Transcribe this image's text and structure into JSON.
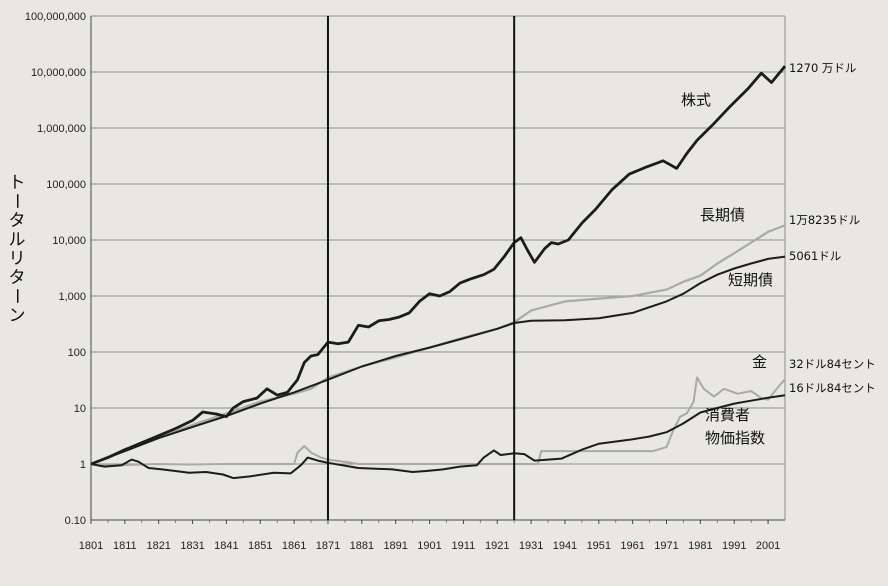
{
  "chart_data": {
    "type": "line",
    "title": "",
    "xlabel": "",
    "ylabel": "トータルリターン",
    "scale": "log",
    "ylim": [
      0.1,
      100000000
    ],
    "xlim": [
      1801,
      2006
    ],
    "yticks": [
      "100,000,000",
      "10,000,000",
      "1,000,000",
      "100,000",
      "10,000",
      "1,000",
      "100",
      "10",
      "1",
      "0.10"
    ],
    "xticks": [
      "1801",
      "1811",
      "1821",
      "1831",
      "1841",
      "1851",
      "1861",
      "1871",
      "1881",
      "1891",
      "1901",
      "1911",
      "1921",
      "1931",
      "1941",
      "1951",
      "1961",
      "1971",
      "1981",
      "1991",
      "2001"
    ],
    "vlines": [
      1871,
      1926
    ],
    "grid": true,
    "series": [
      {
        "name": "株式",
        "color": "#1c1c1c",
        "width": 2.8,
        "end_label": "1270 万ドル",
        "points": [
          [
            1801,
            1
          ],
          [
            1806,
            1.3
          ],
          [
            1811,
            1.8
          ],
          [
            1816,
            2.4
          ],
          [
            1821,
            3.2
          ],
          [
            1826,
            4.3
          ],
          [
            1831,
            6
          ],
          [
            1834,
            8.5
          ],
          [
            1838,
            7.8
          ],
          [
            1841,
            7
          ],
          [
            1843,
            10
          ],
          [
            1846,
            13
          ],
          [
            1850,
            15
          ],
          [
            1853,
            22
          ],
          [
            1856,
            17
          ],
          [
            1859,
            19
          ],
          [
            1862,
            32
          ],
          [
            1864,
            65
          ],
          [
            1866,
            85
          ],
          [
            1868,
            90
          ],
          [
            1871,
            150
          ],
          [
            1874,
            140
          ],
          [
            1877,
            150
          ],
          [
            1880,
            300
          ],
          [
            1883,
            280
          ],
          [
            1886,
            360
          ],
          [
            1889,
            380
          ],
          [
            1892,
            420
          ],
          [
            1895,
            500
          ],
          [
            1898,
            800
          ],
          [
            1901,
            1100
          ],
          [
            1904,
            1000
          ],
          [
            1907,
            1200
          ],
          [
            1910,
            1700
          ],
          [
            1913,
            2000
          ],
          [
            1917,
            2400
          ],
          [
            1920,
            3000
          ],
          [
            1923,
            5000
          ],
          [
            1926,
            9000
          ],
          [
            1928,
            11000
          ],
          [
            1930,
            6500
          ],
          [
            1932,
            4000
          ],
          [
            1935,
            7000
          ],
          [
            1937,
            9000
          ],
          [
            1939,
            8500
          ],
          [
            1942,
            10000
          ],
          [
            1946,
            20000
          ],
          [
            1950,
            35000
          ],
          [
            1955,
            80000
          ],
          [
            1960,
            150000
          ],
          [
            1965,
            200000
          ],
          [
            1970,
            260000
          ],
          [
            1974,
            190000
          ],
          [
            1977,
            350000
          ],
          [
            1980,
            600000
          ],
          [
            1985,
            1200000
          ],
          [
            1990,
            2500000
          ],
          [
            1995,
            5000000
          ],
          [
            1999,
            9500000
          ],
          [
            2002,
            6500000
          ],
          [
            2006,
            12700000
          ]
        ]
      },
      {
        "name": "長期債",
        "color": "#a9a9a9",
        "width": 2.2,
        "end_label": "1万8235ドル",
        "points": [
          [
            1801,
            1
          ],
          [
            1811,
            1.8
          ],
          [
            1821,
            3
          ],
          [
            1831,
            5
          ],
          [
            1841,
            8
          ],
          [
            1851,
            13
          ],
          [
            1861,
            18
          ],
          [
            1866,
            22
          ],
          [
            1871,
            35
          ],
          [
            1881,
            55
          ],
          [
            1891,
            80
          ],
          [
            1901,
            120
          ],
          [
            1911,
            180
          ],
          [
            1921,
            260
          ],
          [
            1926,
            340
          ],
          [
            1931,
            550
          ],
          [
            1941,
            800
          ],
          [
            1951,
            900
          ],
          [
            1961,
            1000
          ],
          [
            1971,
            1300
          ],
          [
            1976,
            1800
          ],
          [
            1981,
            2300
          ],
          [
            1986,
            3800
          ],
          [
            1991,
            5800
          ],
          [
            1996,
            9000
          ],
          [
            2001,
            14000
          ],
          [
            2006,
            18235
          ]
        ]
      },
      {
        "name": "短期債",
        "color": "#1c1c1c",
        "width": 2.0,
        "end_label": "5061ドル",
        "points": [
          [
            1801,
            1
          ],
          [
            1811,
            1.7
          ],
          [
            1821,
            2.9
          ],
          [
            1831,
            4.6
          ],
          [
            1841,
            7.2
          ],
          [
            1851,
            12
          ],
          [
            1861,
            19
          ],
          [
            1871,
            32
          ],
          [
            1881,
            55
          ],
          [
            1891,
            85
          ],
          [
            1901,
            120
          ],
          [
            1911,
            175
          ],
          [
            1921,
            260
          ],
          [
            1926,
            330
          ],
          [
            1931,
            360
          ],
          [
            1941,
            370
          ],
          [
            1951,
            400
          ],
          [
            1961,
            500
          ],
          [
            1971,
            800
          ],
          [
            1976,
            1100
          ],
          [
            1981,
            1700
          ],
          [
            1986,
            2400
          ],
          [
            1991,
            3100
          ],
          [
            1996,
            3800
          ],
          [
            2001,
            4600
          ],
          [
            2006,
            5061
          ]
        ]
      },
      {
        "name": "金",
        "color": "#a9a9a9",
        "width": 2.0,
        "end_label": "32ドル84セント",
        "points": [
          [
            1801,
            1
          ],
          [
            1805,
            0.95
          ],
          [
            1810,
            0.95
          ],
          [
            1820,
            1
          ],
          [
            1830,
            0.98
          ],
          [
            1840,
            1
          ],
          [
            1850,
            1
          ],
          [
            1861,
            1
          ],
          [
            1862,
            1.6
          ],
          [
            1864,
            2.1
          ],
          [
            1866,
            1.6
          ],
          [
            1869,
            1.3
          ],
          [
            1871,
            1.2
          ],
          [
            1878,
            1.05
          ],
          [
            1880,
            1
          ],
          [
            1890,
            1
          ],
          [
            1900,
            1
          ],
          [
            1910,
            1
          ],
          [
            1920,
            1
          ],
          [
            1926,
            1
          ],
          [
            1933,
            1
          ],
          [
            1934,
            1.7
          ],
          [
            1940,
            1.7
          ],
          [
            1950,
            1.7
          ],
          [
            1960,
            1.7
          ],
          [
            1967,
            1.7
          ],
          [
            1971,
            2
          ],
          [
            1973,
            4
          ],
          [
            1975,
            7
          ],
          [
            1977,
            8
          ],
          [
            1979,
            13
          ],
          [
            1980,
            35
          ],
          [
            1982,
            22
          ],
          [
            1985,
            16
          ],
          [
            1988,
            22
          ],
          [
            1992,
            18
          ],
          [
            1996,
            20
          ],
          [
            1999,
            15
          ],
          [
            2001,
            14
          ],
          [
            2003,
            20
          ],
          [
            2006,
            32.84
          ]
        ]
      },
      {
        "name": "消費者物価指数",
        "color": "#1c1c1c",
        "width": 2.0,
        "end_label": "16ドル84セント",
        "points": [
          [
            1801,
            1
          ],
          [
            1805,
            0.9
          ],
          [
            1810,
            0.95
          ],
          [
            1813,
            1.2
          ],
          [
            1815,
            1.1
          ],
          [
            1818,
            0.85
          ],
          [
            1822,
            0.8
          ],
          [
            1830,
            0.7
          ],
          [
            1835,
            0.72
          ],
          [
            1840,
            0.65
          ],
          [
            1843,
            0.56
          ],
          [
            1848,
            0.6
          ],
          [
            1855,
            0.7
          ],
          [
            1860,
            0.68
          ],
          [
            1863,
            0.95
          ],
          [
            1865,
            1.3
          ],
          [
            1868,
            1.15
          ],
          [
            1871,
            1.05
          ],
          [
            1880,
            0.85
          ],
          [
            1890,
            0.8
          ],
          [
            1896,
            0.72
          ],
          [
            1900,
            0.75
          ],
          [
            1905,
            0.8
          ],
          [
            1910,
            0.9
          ],
          [
            1915,
            0.95
          ],
          [
            1917,
            1.3
          ],
          [
            1920,
            1.75
          ],
          [
            1922,
            1.45
          ],
          [
            1926,
            1.55
          ],
          [
            1929,
            1.5
          ],
          [
            1932,
            1.15
          ],
          [
            1940,
            1.25
          ],
          [
            1946,
            1.8
          ],
          [
            1951,
            2.3
          ],
          [
            1960,
            2.7
          ],
          [
            1966,
            3.1
          ],
          [
            1971,
            3.7
          ],
          [
            1976,
            5.3
          ],
          [
            1981,
            8.3
          ],
          [
            1986,
            10
          ],
          [
            1991,
            12
          ],
          [
            1996,
            13.5
          ],
          [
            2001,
            15.3
          ],
          [
            2006,
            16.84
          ]
        ]
      }
    ],
    "labels": {
      "stocks": "株式",
      "bonds": "長期債",
      "bills": "短期債",
      "gold": "金",
      "cpi1": "消費者",
      "cpi2": "物価指数"
    }
  }
}
